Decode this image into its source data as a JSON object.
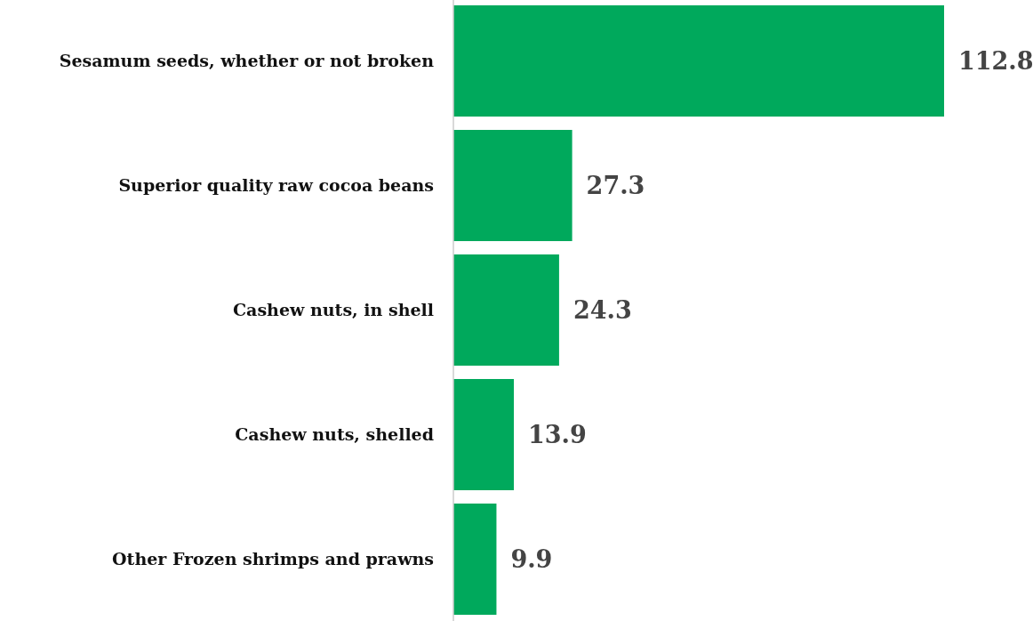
{
  "chart_data": {
    "type": "bar",
    "orientation": "horizontal",
    "categories": [
      "Sesamum seeds, whether or not broken",
      "Superior quality raw cocoa beans",
      "Cashew nuts, in shell",
      "Cashew nuts, shelled",
      "Other Frozen shrimps and prawns"
    ],
    "values": [
      112.8,
      27.3,
      24.3,
      13.9,
      9.9
    ],
    "color": "#00a95c",
    "data_labels": true
  }
}
